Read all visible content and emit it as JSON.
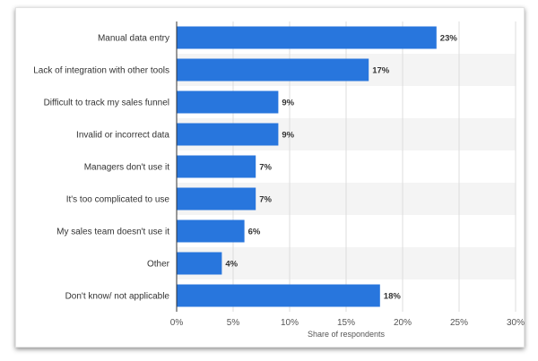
{
  "chart_data": {
    "type": "bar",
    "orientation": "horizontal",
    "categories": [
      "Manual data entry",
      "Lack of integration with other tools",
      "Difficult to track my sales funnel",
      "Invalid or incorrect data",
      "Managers don't use it",
      "It's too complicated to use",
      "My sales team doesn't use it",
      "Other",
      "Don't know/ not applicable"
    ],
    "values": [
      23,
      17,
      9,
      9,
      7,
      7,
      6,
      4,
      18
    ],
    "value_labels": [
      "23%",
      "17%",
      "9%",
      "9%",
      "7%",
      "7%",
      "6%",
      "4%",
      "18%"
    ],
    "xlabel": "Share of respondents",
    "ylabel": "",
    "xlim": [
      0,
      30
    ],
    "xticks": [
      0,
      5,
      10,
      15,
      20,
      25,
      30
    ],
    "xtick_labels": [
      "0%",
      "5%",
      "10%",
      "15%",
      "20%",
      "25%",
      "30%"
    ],
    "grid": true,
    "colors": {
      "bar": "#2876dd",
      "band": "#f4f4f4",
      "grid": "#dcdcdc"
    }
  }
}
